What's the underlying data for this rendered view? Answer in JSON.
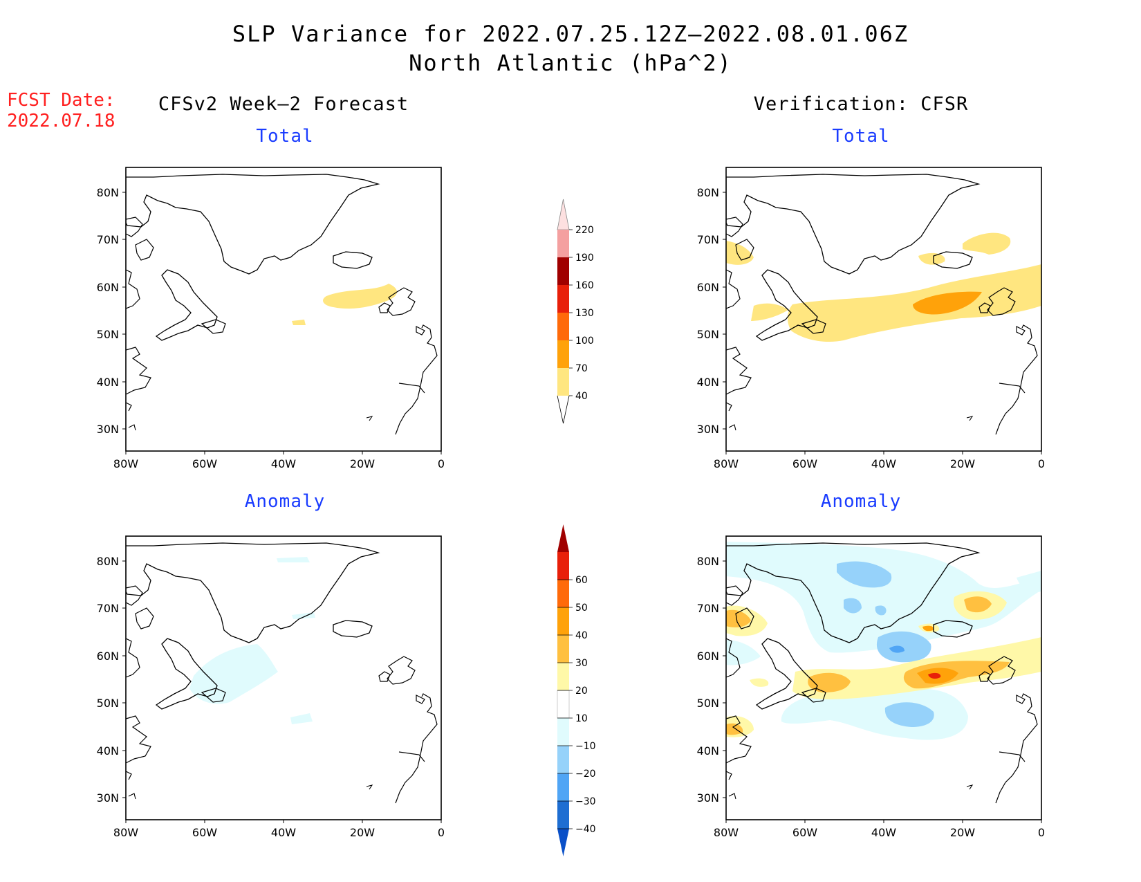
{
  "header": {
    "title_line1": "SLP Variance for 2022.07.25.12Z–2022.08.01.06Z",
    "title_line2": "North Atlantic (hPa^2)",
    "fcst_label": "FCST Date:",
    "fcst_date": "2022.07.18"
  },
  "columns": {
    "left": "CFSv2 Week–2 Forecast",
    "right": "Verification: CFSR"
  },
  "panels": {
    "top_label": "Total",
    "bottom_label": "Anomaly"
  },
  "axes": {
    "lat_ticks": [
      "80N",
      "70N",
      "60N",
      "50N",
      "40N",
      "30N"
    ],
    "lon_ticks": [
      "80W",
      "60W",
      "40W",
      "20W",
      "0"
    ]
  },
  "colorbar_total": {
    "levels": [
      "40",
      "70",
      "100",
      "130",
      "160",
      "190",
      "220"
    ],
    "colors": [
      "#ffe680",
      "#ffa20a",
      "#ff6a0a",
      "#e8200a",
      "#a00000",
      "#f4a0a0",
      "#fde0e0"
    ]
  },
  "colorbar_anomaly": {
    "levels": [
      "60",
      "50",
      "40",
      "30",
      "20",
      "10",
      "−10",
      "−20",
      "−30",
      "−40"
    ],
    "colors": [
      "#a00000",
      "#e8200a",
      "#ff6a0a",
      "#ffa20a",
      "#ffc040",
      "#fff8a8",
      "#ffffff",
      "#e0fbfd",
      "#96d2fa",
      "#50a5f5",
      "#1e6ed2",
      "#0a50c8"
    ]
  }
}
